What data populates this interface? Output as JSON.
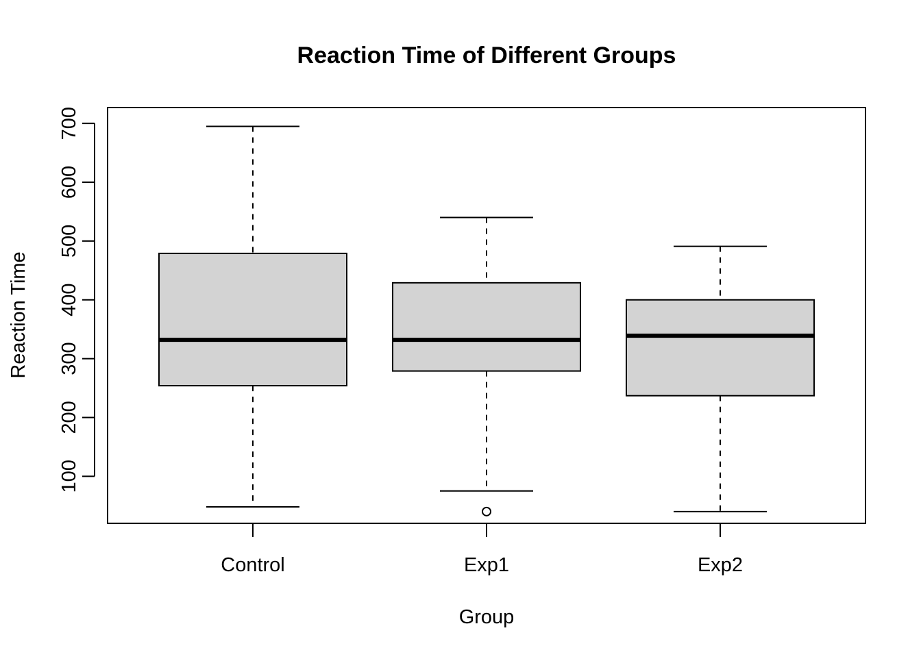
{
  "chart_data": {
    "type": "boxplot",
    "title": "Reaction Time of Different Groups",
    "xlabel": "Group",
    "ylabel": "Reaction Time",
    "ylim": [
      20,
      727
    ],
    "yticks": [
      100,
      200,
      300,
      400,
      500,
      600,
      700
    ],
    "grid": false,
    "legend": "none",
    "colors": {
      "box_fill": "#d3d3d3",
      "stroke": "#000000",
      "background": "#ffffff"
    },
    "categories": [
      "Control",
      "Exp1",
      "Exp2"
    ],
    "boxes": [
      {
        "category": "Control",
        "whisker_low": 48,
        "q1": 254,
        "median": 332,
        "q3": 479,
        "whisker_high": 695,
        "outliers": []
      },
      {
        "category": "Exp1",
        "whisker_low": 75,
        "q1": 279,
        "median": 332,
        "q3": 429,
        "whisker_high": 540,
        "outliers": [
          40
        ]
      },
      {
        "category": "Exp2",
        "whisker_low": 40,
        "q1": 237,
        "median": 339,
        "q3": 400,
        "whisker_high": 491,
        "outliers": []
      }
    ]
  }
}
